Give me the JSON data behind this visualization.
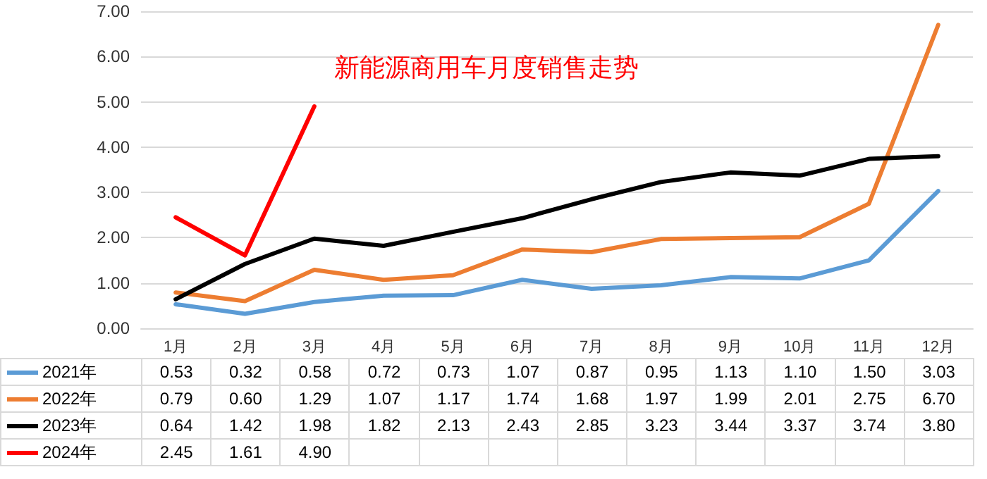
{
  "chart_data": {
    "type": "line",
    "title": "新能源商用车月度销售走势",
    "categories": [
      "1月",
      "2月",
      "3月",
      "4月",
      "5月",
      "6月",
      "7月",
      "8月",
      "9月",
      "10月",
      "11月",
      "12月"
    ],
    "series": [
      {
        "name": "2021年",
        "color": "#5b9bd5",
        "values": [
          0.53,
          0.32,
          0.58,
          0.72,
          0.73,
          1.07,
          0.87,
          0.95,
          1.13,
          1.1,
          1.5,
          3.03
        ],
        "value_labels": [
          "0.53",
          "0.32",
          "0.58",
          "0.72",
          "0.73",
          "1.07",
          "0.87",
          "0.95",
          "1.13",
          "1.10",
          "1.50",
          "3.03"
        ]
      },
      {
        "name": "2022年",
        "color": "#ed7d31",
        "values": [
          0.79,
          0.6,
          1.29,
          1.07,
          1.17,
          1.74,
          1.68,
          1.97,
          1.99,
          2.01,
          2.75,
          6.7
        ],
        "value_labels": [
          "0.79",
          "0.60",
          "1.29",
          "1.07",
          "1.17",
          "1.74",
          "1.68",
          "1.97",
          "1.99",
          "2.01",
          "2.75",
          "6.70"
        ]
      },
      {
        "name": "2023年",
        "color": "#000000",
        "values": [
          0.64,
          1.42,
          1.98,
          1.82,
          2.13,
          2.43,
          2.85,
          3.23,
          3.44,
          3.37,
          3.74,
          3.8
        ],
        "value_labels": [
          "0.64",
          "1.42",
          "1.98",
          "1.82",
          "2.13",
          "2.43",
          "2.85",
          "3.23",
          "3.44",
          "3.37",
          "3.74",
          "3.80"
        ]
      },
      {
        "name": "2024年",
        "color": "#ff0000",
        "values": [
          2.45,
          1.61,
          4.9,
          null,
          null,
          null,
          null,
          null,
          null,
          null,
          null,
          null
        ],
        "value_labels": [
          "2.45",
          "1.61",
          "4.90",
          null,
          null,
          null,
          null,
          null,
          null,
          null,
          null,
          null
        ]
      }
    ],
    "ylim": [
      0,
      7
    ],
    "yticks": [
      {
        "value": 0,
        "label": "0.00"
      },
      {
        "value": 1,
        "label": "1.00"
      },
      {
        "value": 2,
        "label": "2.00"
      },
      {
        "value": 3,
        "label": "3.00"
      },
      {
        "value": 4,
        "label": "4.00"
      },
      {
        "value": 5,
        "label": "5.00"
      },
      {
        "value": 6,
        "label": "6.00"
      },
      {
        "value": 7,
        "label": "7.00"
      }
    ],
    "grid": "y",
    "marker": "none",
    "line_style": "solid",
    "legend": "bottom left"
  }
}
